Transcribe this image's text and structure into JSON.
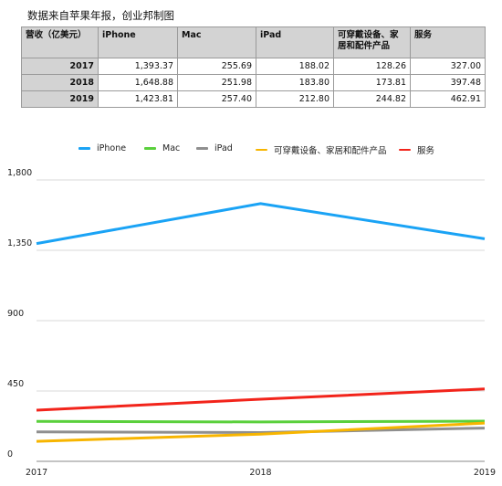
{
  "caption": "数据来自苹果年报，创业邦制图",
  "table": {
    "corner": "营收（亿美元）",
    "headers": [
      "iPhone",
      "Mac",
      "iPad",
      "可穿戴设备、家居和配件产品",
      "服务"
    ],
    "rows": [
      {
        "year": "2017",
        "cells": [
          "1,393.37",
          "255.69",
          "188.02",
          "128.26",
          "327.00"
        ]
      },
      {
        "year": "2018",
        "cells": [
          "1,648.88",
          "251.98",
          "183.80",
          "173.81",
          "397.48"
        ]
      },
      {
        "year": "2019",
        "cells": [
          "1,423.81",
          "257.40",
          "212.80",
          "244.82",
          "462.91"
        ]
      }
    ]
  },
  "chart_data": {
    "type": "line",
    "x": [
      "2017",
      "2018",
      "2019"
    ],
    "ylim": [
      0,
      1800
    ],
    "yticks": [
      "0",
      "450",
      "900",
      "1,350",
      "1,800"
    ],
    "grid": true,
    "legend_position": "top",
    "series": [
      {
        "name": "iPhone",
        "color": "#1aa3f5",
        "values": [
          1393.37,
          1648.88,
          1423.81
        ]
      },
      {
        "name": "Mac",
        "color": "#5ad03c",
        "values": [
          255.69,
          251.98,
          257.4
        ]
      },
      {
        "name": "iPad",
        "color": "#8f8f8f",
        "values": [
          188.02,
          183.8,
          212.8
        ]
      },
      {
        "name": "可穿戴设备、家居和配件产品",
        "color": "#f7b500",
        "values": [
          128.26,
          173.81,
          244.82
        ]
      },
      {
        "name": "服务",
        "color": "#f2241b",
        "values": [
          327.0,
          397.48,
          462.91
        ]
      }
    ]
  }
}
